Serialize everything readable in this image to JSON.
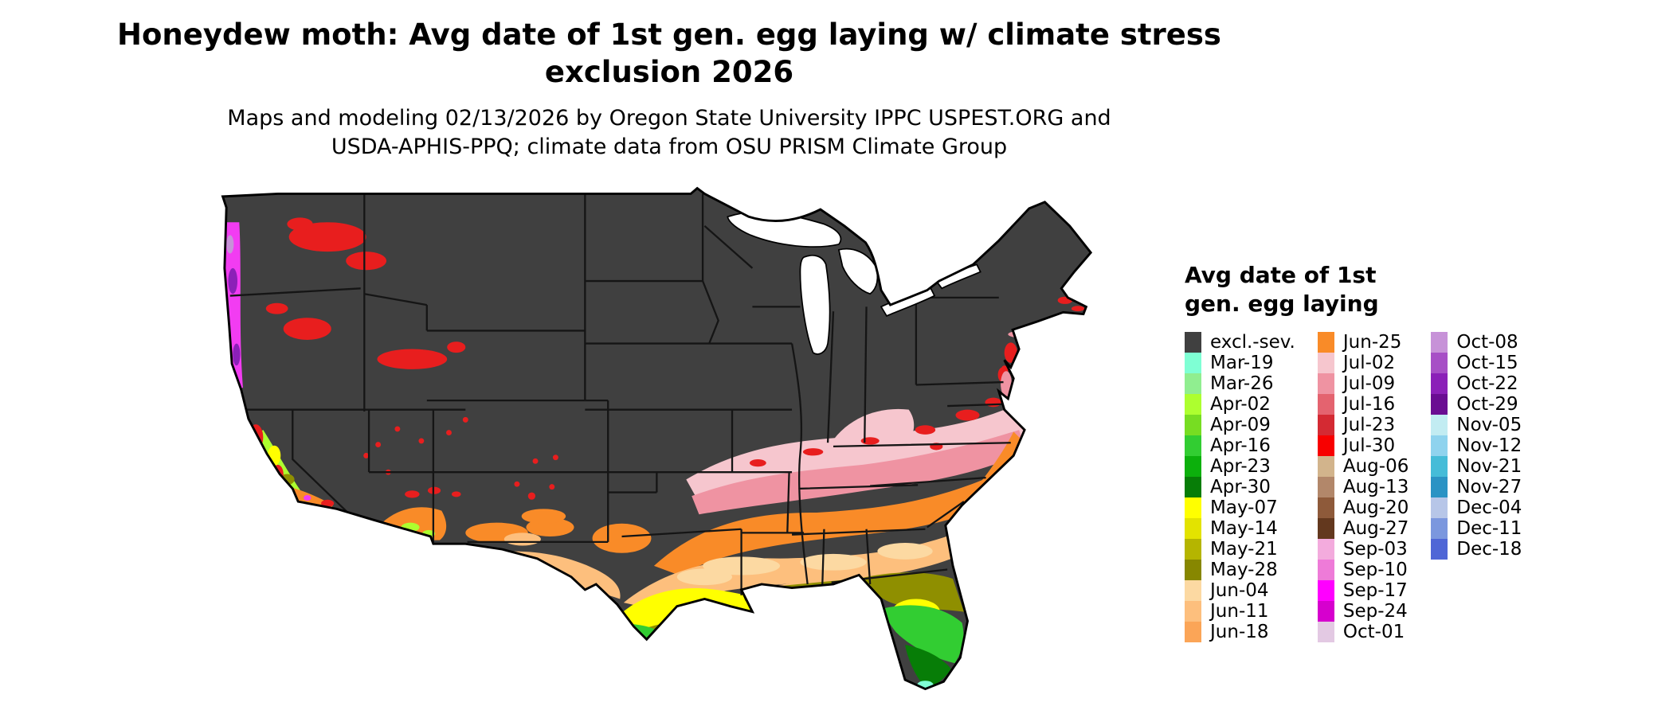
{
  "header": {
    "title_line1": "Honeydew moth: Avg date of 1st gen. egg laying w/ climate stress",
    "title_line2": "exclusion 2026",
    "subtitle_line1": "Maps and modeling 02/13/2026 by Oregon State University IPPC USPEST.ORG and",
    "subtitle_line2": "USDA-APHIS-PPQ; climate data from OSU PRISM Climate Group"
  },
  "legend": {
    "title_line1": "Avg date of 1st",
    "title_line2": "gen. egg laying",
    "columns": [
      {
        "items": [
          {
            "label": "excl.-sev.",
            "color": "#404040"
          },
          {
            "label": "Mar-19",
            "color": "#7fffd4"
          },
          {
            "label": "Mar-26",
            "color": "#90ee90"
          },
          {
            "label": "Apr-02",
            "color": "#adff2f"
          },
          {
            "label": "Apr-09",
            "color": "#77dd22"
          },
          {
            "label": "Apr-16",
            "color": "#32cd32"
          },
          {
            "label": "Apr-23",
            "color": "#0cb00c"
          },
          {
            "label": "Apr-30",
            "color": "#077d07"
          },
          {
            "label": "May-07",
            "color": "#ffff00"
          },
          {
            "label": "May-14",
            "color": "#e3e300"
          },
          {
            "label": "May-21",
            "color": "#b5b500"
          },
          {
            "label": "May-28",
            "color": "#878700"
          },
          {
            "label": "Jun-04",
            "color": "#fcd9a2"
          },
          {
            "label": "Jun-11",
            "color": "#fdbf7d"
          },
          {
            "label": "Jun-18",
            "color": "#fba557"
          }
        ]
      },
      {
        "items": [
          {
            "label": "Jun-25",
            "color": "#f98b28"
          },
          {
            "label": "Jul-02",
            "color": "#f6c6ce"
          },
          {
            "label": "Jul-09",
            "color": "#ef93a2"
          },
          {
            "label": "Jul-16",
            "color": "#e4636f"
          },
          {
            "label": "Jul-23",
            "color": "#d42a33"
          },
          {
            "label": "Jul-30",
            "color": "#f80000"
          },
          {
            "label": "Aug-06",
            "color": "#d2b48c"
          },
          {
            "label": "Aug-13",
            "color": "#b2876a"
          },
          {
            "label": "Aug-20",
            "color": "#8e5a3a"
          },
          {
            "label": "Aug-27",
            "color": "#63381e"
          },
          {
            "label": "Sep-03",
            "color": "#f3abdd"
          },
          {
            "label": "Sep-10",
            "color": "#ee7bd8"
          },
          {
            "label": "Sep-17",
            "color": "#ff00ff"
          },
          {
            "label": "Sep-24",
            "color": "#d600ce"
          },
          {
            "label": "Oct-01",
            "color": "#e3c9e3"
          }
        ]
      },
      {
        "items": [
          {
            "label": "Oct-08",
            "color": "#c792d8"
          },
          {
            "label": "Oct-15",
            "color": "#a74fc6"
          },
          {
            "label": "Oct-22",
            "color": "#8b20b8"
          },
          {
            "label": "Oct-29",
            "color": "#6a0d92"
          },
          {
            "label": "Nov-05",
            "color": "#c2ecf2"
          },
          {
            "label": "Nov-12",
            "color": "#8fd3ee"
          },
          {
            "label": "Nov-21",
            "color": "#45bcd8"
          },
          {
            "label": "Nov-27",
            "color": "#2b93c4"
          },
          {
            "label": "Dec-04",
            "color": "#b7c6e8"
          },
          {
            "label": "Dec-11",
            "color": "#7b97de"
          },
          {
            "label": "Dec-18",
            "color": "#4f66d6"
          }
        ]
      }
    ]
  }
}
